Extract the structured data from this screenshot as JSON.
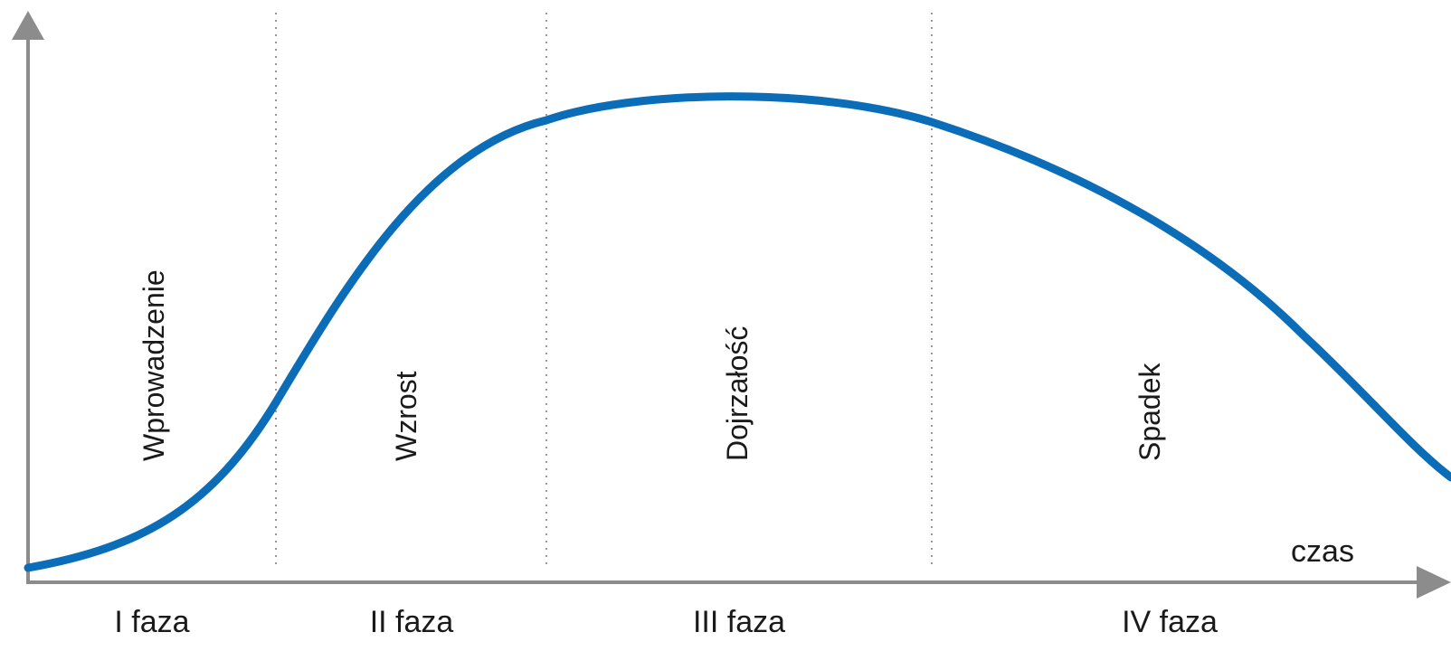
{
  "diagram": {
    "type": "product-life-cycle",
    "x_axis_label": "czas",
    "curve_color": "#0b6db8",
    "axis_color": "#8c8c8c",
    "divider_color": "#9a9a9a",
    "stages": [
      {
        "name": "Wprowadzenie",
        "phase": "I faza"
      },
      {
        "name": "Wzrost",
        "phase": "II faza"
      },
      {
        "name": "Dojrzałość",
        "phase": "III faza"
      },
      {
        "name": "Spadek",
        "phase": "IV faza"
      }
    ]
  }
}
